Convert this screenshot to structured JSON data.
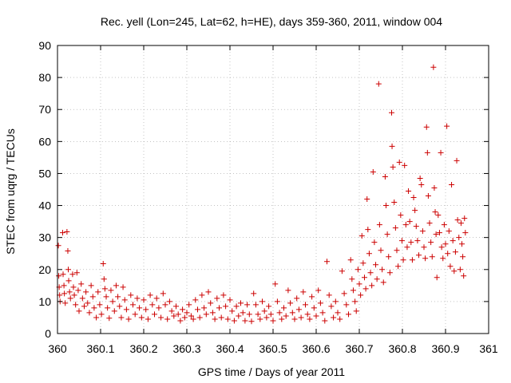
{
  "chart_data": {
    "type": "scatter",
    "title": "Rec. yell (Lon=245, Lat=62, h=HE), days 359-360, 2011, window 004",
    "xlabel": "GPS time / Days of year 2011",
    "ylabel": "STEC from uqrg / TECUs",
    "xlim": [
      360,
      361
    ],
    "ylim": [
      0,
      90
    ],
    "xticks": [
      "360",
      "360.1",
      "360.2",
      "360.3",
      "360.4",
      "360.5",
      "360.6",
      "360.7",
      "360.8",
      "360.9",
      "361"
    ],
    "yticks": [
      "0",
      "10",
      "20",
      "30",
      "40",
      "50",
      "60",
      "70",
      "80",
      "90"
    ],
    "grid": true,
    "legend": "none",
    "marker": "plus",
    "color": "#cc0000",
    "points": [
      [
        360.002,
        27.5
      ],
      [
        360.003,
        18.0
      ],
      [
        360.004,
        14.5
      ],
      [
        360.005,
        12.0
      ],
      [
        360.006,
        10.0
      ],
      [
        360.012,
        31.5
      ],
      [
        360.013,
        18.5
      ],
      [
        360.015,
        15.0
      ],
      [
        360.016,
        12.5
      ],
      [
        360.018,
        9.5
      ],
      [
        360.022,
        31.8
      ],
      [
        360.024,
        25.8
      ],
      [
        360.025,
        20.0
      ],
      [
        360.026,
        16.5
      ],
      [
        360.028,
        13.0
      ],
      [
        360.03,
        11.0
      ],
      [
        360.035,
        18.5
      ],
      [
        360.037,
        14.5
      ],
      [
        360.039,
        12.0
      ],
      [
        360.042,
        9.0
      ],
      [
        360.045,
        19.0
      ],
      [
        360.048,
        13.5
      ],
      [
        360.05,
        7.0
      ],
      [
        360.055,
        15.5
      ],
      [
        360.058,
        11.0
      ],
      [
        360.062,
        8.5
      ],
      [
        360.066,
        13.0
      ],
      [
        360.07,
        9.5
      ],
      [
        360.074,
        6.5
      ],
      [
        360.078,
        15.0
      ],
      [
        360.082,
        11.5
      ],
      [
        360.085,
        8.0
      ],
      [
        360.09,
        5.0
      ],
      [
        360.094,
        13.0
      ],
      [
        360.098,
        9.0
      ],
      [
        360.102,
        6.0
      ],
      [
        360.106,
        21.8
      ],
      [
        360.108,
        17.0
      ],
      [
        360.11,
        14.0
      ],
      [
        360.113,
        11.5
      ],
      [
        360.116,
        8.0
      ],
      [
        360.12,
        4.8
      ],
      [
        360.124,
        13.5
      ],
      [
        360.128,
        10.0
      ],
      [
        360.132,
        7.0
      ],
      [
        360.136,
        15.0
      ],
      [
        360.14,
        11.5
      ],
      [
        360.144,
        8.5
      ],
      [
        360.148,
        5.0
      ],
      [
        360.152,
        14.5
      ],
      [
        360.156,
        10.5
      ],
      [
        360.16,
        7.5
      ],
      [
        360.165,
        4.5
      ],
      [
        360.17,
        12.0
      ],
      [
        360.175,
        9.0
      ],
      [
        360.18,
        6.0
      ],
      [
        360.185,
        11.0
      ],
      [
        360.19,
        8.0
      ],
      [
        360.195,
        5.0
      ],
      [
        360.2,
        10.5
      ],
      [
        360.205,
        7.5
      ],
      [
        360.21,
        4.5
      ],
      [
        360.215,
        12.0
      ],
      [
        360.22,
        9.0
      ],
      [
        360.225,
        6.0
      ],
      [
        360.23,
        11.0
      ],
      [
        360.235,
        8.0
      ],
      [
        360.24,
        5.0
      ],
      [
        360.245,
        12.5
      ],
      [
        360.25,
        9.0
      ],
      [
        360.255,
        4.5
      ],
      [
        360.26,
        10.0
      ],
      [
        360.265,
        7.0
      ],
      [
        360.27,
        5.5
      ],
      [
        360.275,
        8.5
      ],
      [
        360.28,
        6.0
      ],
      [
        360.285,
        4.0
      ],
      [
        360.29,
        7.5
      ],
      [
        360.295,
        5.0
      ],
      [
        360.3,
        6.5
      ],
      [
        360.305,
        9.0
      ],
      [
        360.31,
        5.5
      ],
      [
        360.315,
        4.5
      ],
      [
        360.32,
        10.5
      ],
      [
        360.325,
        7.5
      ],
      [
        360.33,
        5.0
      ],
      [
        360.335,
        12.0
      ],
      [
        360.34,
        8.0
      ],
      [
        360.345,
        6.0
      ],
      [
        360.35,
        13.0
      ],
      [
        360.355,
        9.5
      ],
      [
        360.36,
        6.5
      ],
      [
        360.365,
        4.5
      ],
      [
        360.37,
        11.0
      ],
      [
        360.375,
        8.0
      ],
      [
        360.38,
        5.0
      ],
      [
        360.385,
        12.0
      ],
      [
        360.39,
        8.5
      ],
      [
        360.395,
        4.5
      ],
      [
        360.4,
        10.5
      ],
      [
        360.405,
        7.0
      ],
      [
        360.41,
        4.0
      ],
      [
        360.415,
        8.5
      ],
      [
        360.42,
        5.5
      ],
      [
        360.425,
        9.5
      ],
      [
        360.43,
        6.5
      ],
      [
        360.435,
        4.0
      ],
      [
        360.44,
        9.0
      ],
      [
        360.445,
        6.0
      ],
      [
        360.45,
        3.8
      ],
      [
        360.455,
        12.5
      ],
      [
        360.46,
        9.0
      ],
      [
        360.465,
        6.0
      ],
      [
        360.47,
        4.5
      ],
      [
        360.475,
        10.0
      ],
      [
        360.48,
        7.0
      ],
      [
        360.485,
        5.0
      ],
      [
        360.49,
        8.5
      ],
      [
        360.495,
        6.0
      ],
      [
        360.5,
        4.0
      ],
      [
        360.505,
        15.5
      ],
      [
        360.51,
        10.0
      ],
      [
        360.515,
        6.5
      ],
      [
        360.52,
        4.5
      ],
      [
        360.525,
        8.0
      ],
      [
        360.53,
        5.5
      ],
      [
        360.535,
        13.5
      ],
      [
        360.54,
        9.5
      ],
      [
        360.545,
        6.5
      ],
      [
        360.55,
        4.5
      ],
      [
        360.555,
        11.0
      ],
      [
        360.56,
        7.5
      ],
      [
        360.565,
        5.0
      ],
      [
        360.57,
        13.0
      ],
      [
        360.575,
        9.0
      ],
      [
        360.58,
        6.0
      ],
      [
        360.585,
        4.5
      ],
      [
        360.59,
        11.5
      ],
      [
        360.595,
        8.0
      ],
      [
        360.6,
        5.5
      ],
      [
        360.605,
        13.5
      ],
      [
        360.61,
        9.5
      ],
      [
        360.615,
        6.5
      ],
      [
        360.62,
        4.0
      ],
      [
        360.625,
        22.5
      ],
      [
        360.63,
        12.0
      ],
      [
        360.635,
        8.5
      ],
      [
        360.64,
        5.0
      ],
      [
        360.645,
        10.0
      ],
      [
        360.65,
        6.5
      ],
      [
        360.655,
        4.5
      ],
      [
        360.66,
        19.5
      ],
      [
        360.665,
        12.5
      ],
      [
        360.67,
        9.0
      ],
      [
        360.675,
        6.0
      ],
      [
        360.68,
        23.0
      ],
      [
        360.683,
        17.0
      ],
      [
        360.686,
        13.5
      ],
      [
        360.69,
        10.0
      ],
      [
        360.693,
        7.0
      ],
      [
        360.697,
        20.0
      ],
      [
        360.7,
        15.5
      ],
      [
        360.703,
        12.0
      ],
      [
        360.706,
        30.5
      ],
      [
        360.709,
        22.0
      ],
      [
        360.712,
        17.5
      ],
      [
        360.715,
        14.0
      ],
      [
        360.718,
        42.0
      ],
      [
        360.72,
        32.5
      ],
      [
        360.723,
        25.0
      ],
      [
        360.726,
        19.0
      ],
      [
        360.729,
        15.0
      ],
      [
        360.732,
        50.5
      ],
      [
        360.735,
        28.5
      ],
      [
        360.738,
        21.5
      ],
      [
        360.741,
        17.0
      ],
      [
        360.745,
        78.0
      ],
      [
        360.747,
        34.0
      ],
      [
        360.75,
        26.0
      ],
      [
        360.753,
        20.0
      ],
      [
        360.756,
        16.0
      ],
      [
        360.76,
        49.0
      ],
      [
        360.762,
        40.0
      ],
      [
        360.765,
        31.0
      ],
      [
        360.768,
        24.0
      ],
      [
        360.771,
        19.0
      ],
      [
        360.775,
        69.0
      ],
      [
        360.776,
        58.5
      ],
      [
        360.778,
        52.0
      ],
      [
        360.781,
        41.0
      ],
      [
        360.784,
        33.0
      ],
      [
        360.787,
        26.0
      ],
      [
        360.79,
        21.0
      ],
      [
        360.793,
        53.5
      ],
      [
        360.796,
        37.0
      ],
      [
        360.799,
        29.0
      ],
      [
        360.802,
        23.0
      ],
      [
        360.805,
        52.5
      ],
      [
        360.808,
        34.0
      ],
      [
        360.811,
        27.0
      ],
      [
        360.814,
        44.5
      ],
      [
        360.817,
        35.0
      ],
      [
        360.82,
        28.5
      ],
      [
        360.823,
        23.0
      ],
      [
        360.826,
        42.5
      ],
      [
        360.829,
        38.5
      ],
      [
        360.832,
        33.5
      ],
      [
        360.835,
        29.0
      ],
      [
        360.838,
        24.5
      ],
      [
        360.841,
        48.5
      ],
      [
        360.844,
        46.5
      ],
      [
        360.847,
        32.0
      ],
      [
        360.85,
        27.0
      ],
      [
        360.853,
        23.5
      ],
      [
        360.856,
        64.5
      ],
      [
        360.858,
        56.5
      ],
      [
        360.86,
        43.0
      ],
      [
        360.863,
        34.5
      ],
      [
        360.866,
        28.5
      ],
      [
        360.869,
        24.0
      ],
      [
        360.872,
        83.2
      ],
      [
        360.874,
        45.5
      ],
      [
        360.876,
        38.0
      ],
      [
        360.878,
        31.0
      ],
      [
        360.88,
        17.5
      ],
      [
        360.883,
        37.0
      ],
      [
        360.886,
        31.5
      ],
      [
        360.889,
        56.5
      ],
      [
        360.891,
        27.0
      ],
      [
        360.894,
        23.5
      ],
      [
        360.897,
        34.0
      ],
      [
        360.9,
        28.0
      ],
      [
        360.903,
        64.8
      ],
      [
        360.905,
        25.0
      ],
      [
        360.908,
        32.0
      ],
      [
        360.911,
        21.0
      ],
      [
        360.914,
        46.5
      ],
      [
        360.917,
        29.0
      ],
      [
        360.92,
        19.5
      ],
      [
        360.923,
        25.5
      ],
      [
        360.926,
        54.0
      ],
      [
        360.928,
        35.5
      ],
      [
        360.931,
        30.0
      ],
      [
        360.934,
        20.0
      ],
      [
        360.936,
        34.5
      ],
      [
        360.938,
        28.0
      ],
      [
        360.94,
        24.0
      ],
      [
        360.942,
        18.0
      ],
      [
        360.944,
        36.0
      ],
      [
        360.946,
        31.5
      ]
    ]
  }
}
